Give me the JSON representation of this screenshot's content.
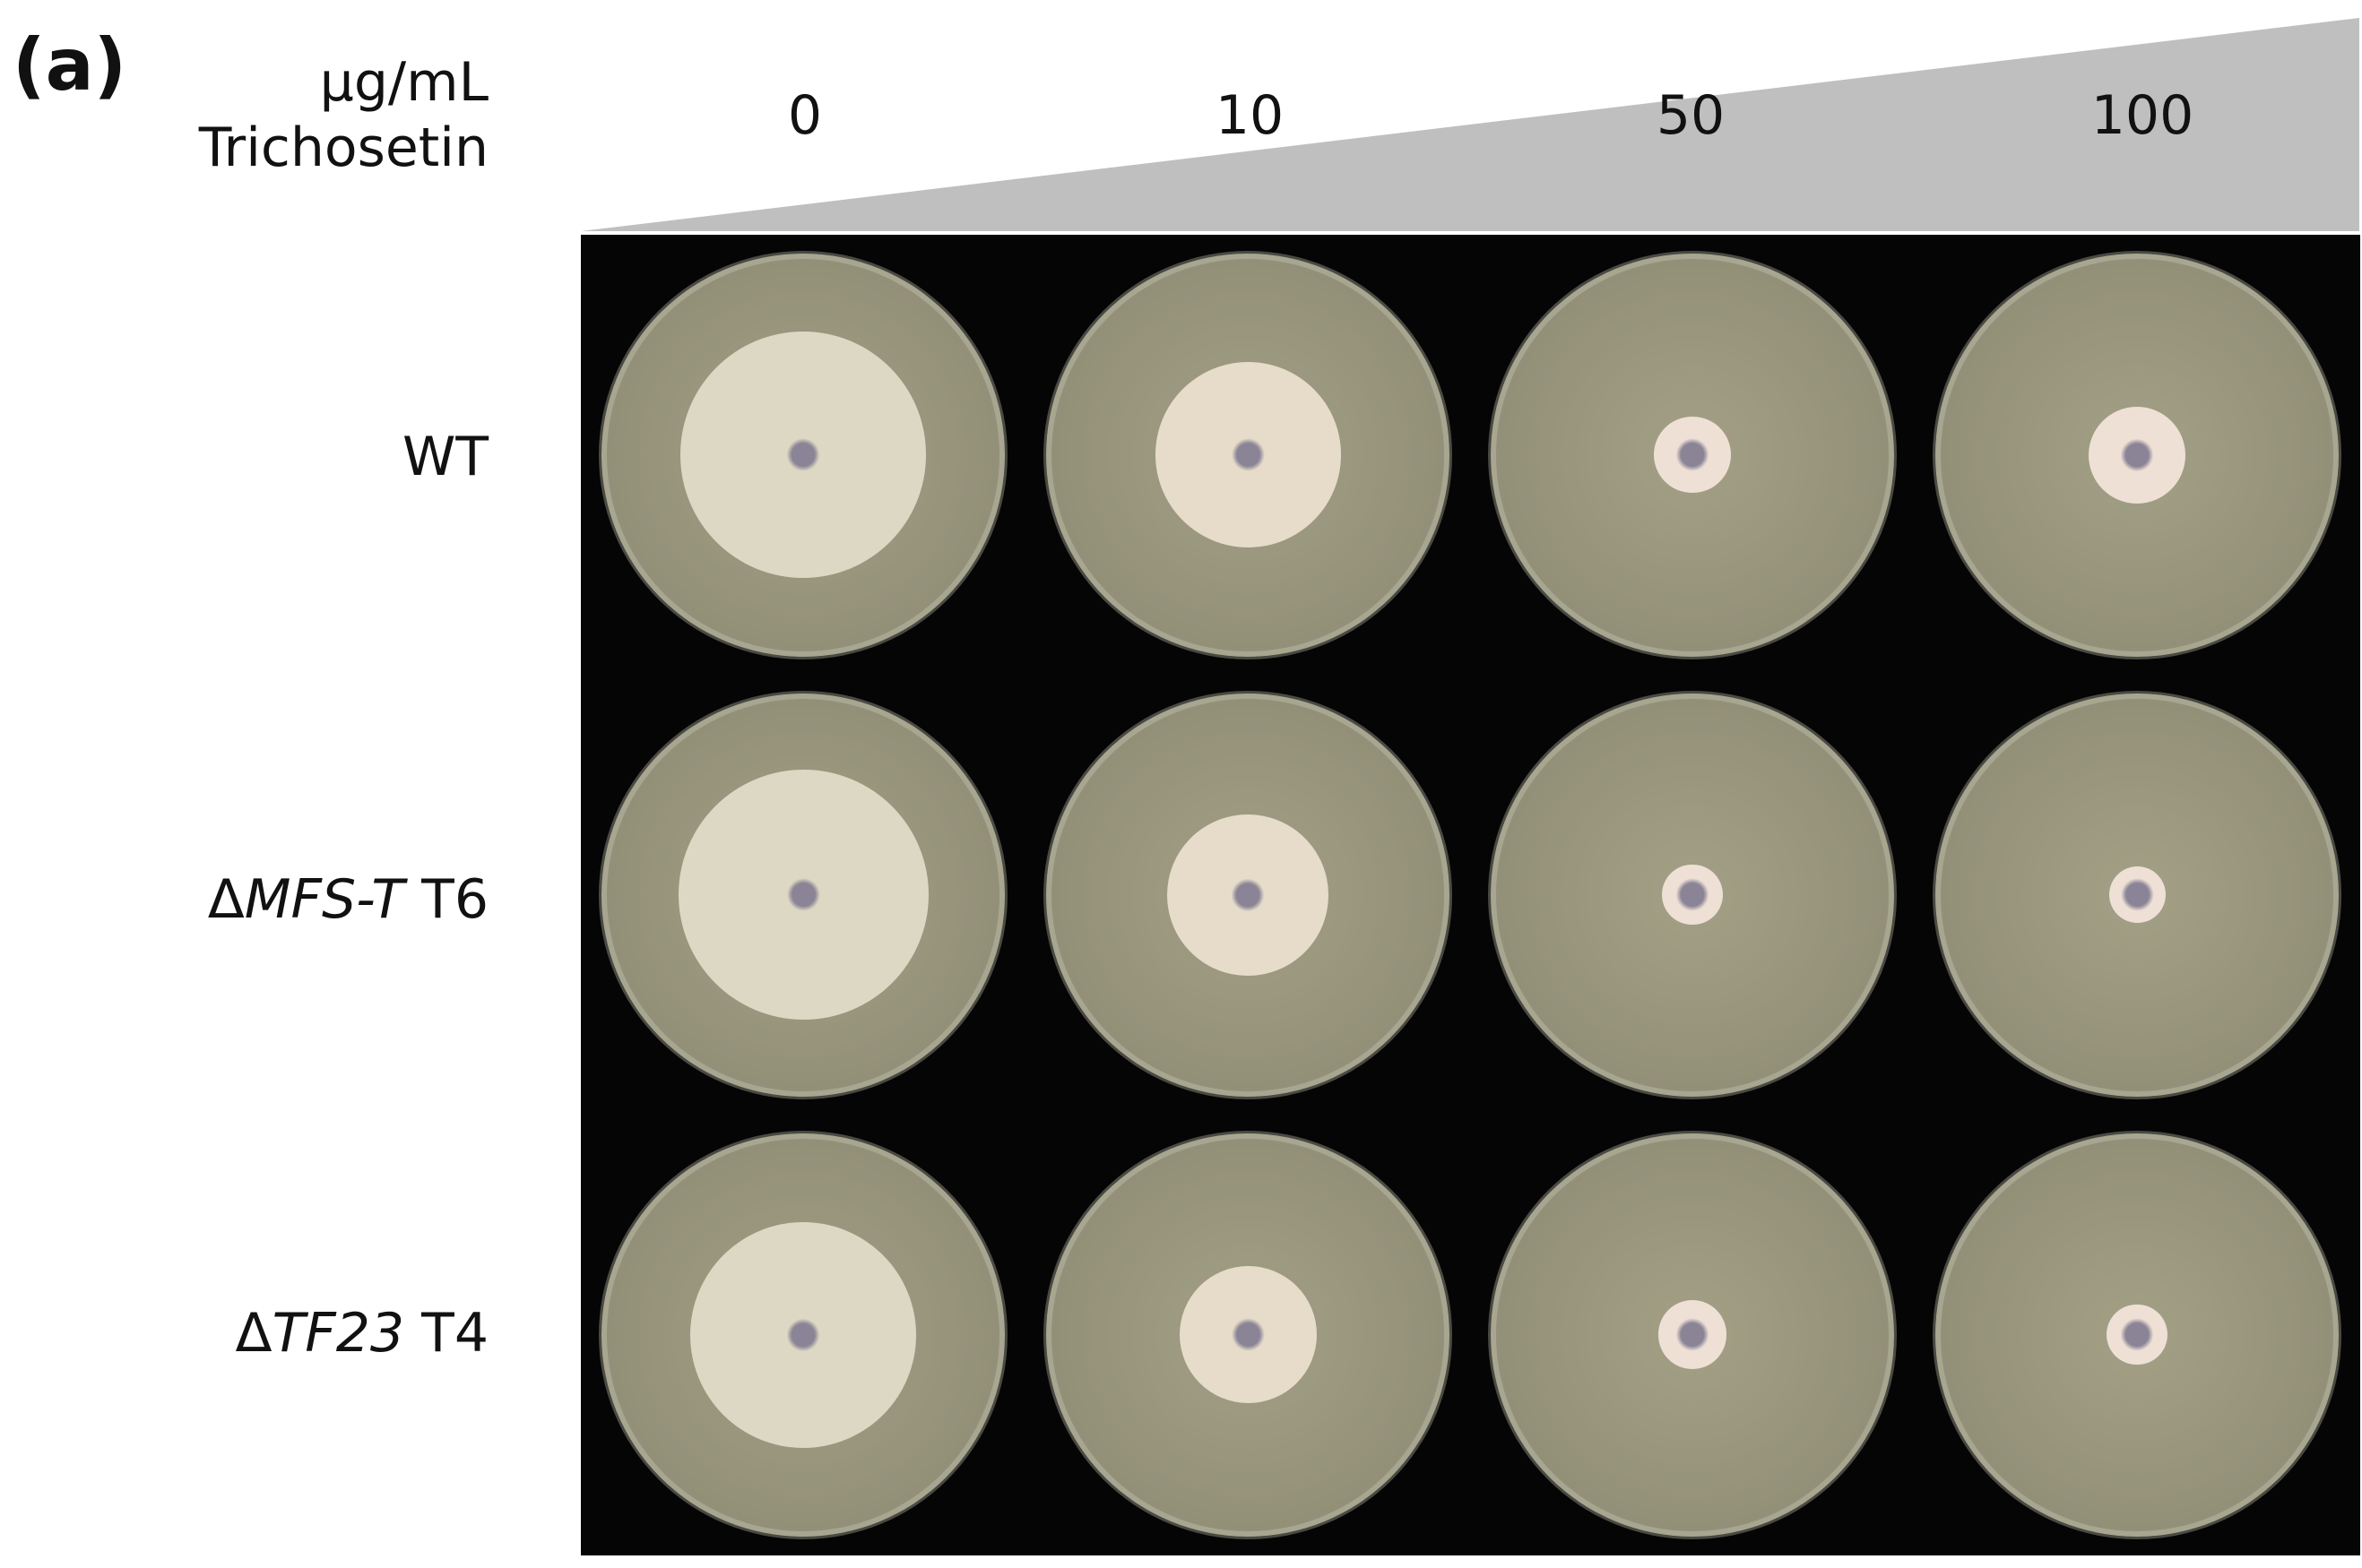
{
  "panel_label": "(a)",
  "concentration_unit": [
    "µg/mL",
    "Trichosetin"
  ],
  "concentrations": [
    "0",
    "10",
    "50",
    "100"
  ],
  "rows": [
    {
      "prefix": "",
      "italic": "",
      "suffix": "WT",
      "colony_diameter_fraction": [
        0.61,
        0.46,
        0.19,
        0.24
      ]
    },
    {
      "prefix": "Δ",
      "italic": "MFS-T",
      "suffix": " T6",
      "colony_diameter_fraction": [
        0.62,
        0.4,
        0.15,
        0.14
      ]
    },
    {
      "prefix": "Δ",
      "italic": "TF23",
      "suffix": " T4",
      "colony_diameter_fraction": [
        0.56,
        0.34,
        0.17,
        0.15
      ]
    }
  ],
  "colors": {
    "wedge": "#bfbfbf",
    "background": "#050505",
    "agar": "#a3a086",
    "colony_control": "#ddd8c3",
    "colony_treated": "#efe0d6",
    "inoculum": "#8a8496"
  }
}
